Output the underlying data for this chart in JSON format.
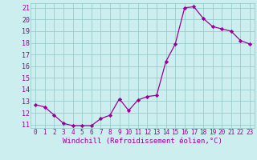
{
  "x": [
    0,
    1,
    2,
    3,
    4,
    5,
    6,
    7,
    8,
    9,
    10,
    11,
    12,
    13,
    14,
    15,
    16,
    17,
    18,
    19,
    20,
    21,
    22,
    23
  ],
  "y": [
    12.7,
    12.5,
    11.8,
    11.1,
    10.9,
    10.9,
    10.9,
    11.5,
    11.8,
    13.2,
    12.2,
    13.1,
    13.4,
    13.5,
    16.4,
    17.9,
    21.0,
    21.1,
    20.1,
    19.4,
    19.2,
    19.0,
    18.2,
    17.9
  ],
  "xlabel": "Windchill (Refroidissement éolien,°C)",
  "xlim_min": -0.5,
  "xlim_max": 23.5,
  "ylim_min": 10.7,
  "ylim_max": 21.4,
  "yticks": [
    11,
    12,
    13,
    14,
    15,
    16,
    17,
    18,
    19,
    20,
    21
  ],
  "xticks": [
    0,
    1,
    2,
    3,
    4,
    5,
    6,
    7,
    8,
    9,
    10,
    11,
    12,
    13,
    14,
    15,
    16,
    17,
    18,
    19,
    20,
    21,
    22,
    23
  ],
  "line_color": "#990099",
  "marker": "D",
  "marker_size": 2.2,
  "bg_color": "#cceeee",
  "grid_color": "#99cccc",
  "xlabel_color": "#990099",
  "tick_color": "#990099",
  "xlabel_fontsize": 6.5,
  "ytick_fontsize": 6.0,
  "xtick_fontsize": 5.5,
  "linewidth": 0.9
}
